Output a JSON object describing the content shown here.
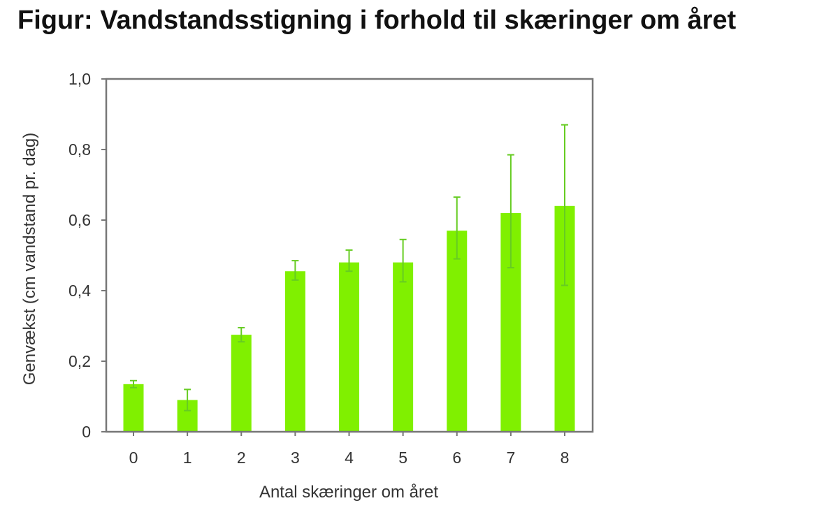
{
  "title": "Figur: Vandstandsstigning i forhold til skæringer om året",
  "chart_data": {
    "type": "bar",
    "title": "Figur: Vandstandsstigning i forhold til skæringer om året",
    "xlabel": "Antal skæringer om året",
    "ylabel": "Genvækst (cm vandstand pr. dag)",
    "categories": [
      "0",
      "1",
      "2",
      "3",
      "4",
      "5",
      "6",
      "7",
      "8"
    ],
    "values": [
      0.135,
      0.09,
      0.275,
      0.455,
      0.48,
      0.48,
      0.57,
      0.62,
      0.64
    ],
    "error_low": [
      0.125,
      0.06,
      0.255,
      0.43,
      0.455,
      0.425,
      0.49,
      0.465,
      0.415
    ],
    "error_high": [
      0.145,
      0.12,
      0.295,
      0.485,
      0.515,
      0.545,
      0.665,
      0.785,
      0.87
    ],
    "y_ticks": [
      "0",
      "0,2",
      "0,4",
      "0,6",
      "0,8",
      "1,0"
    ],
    "ylim": [
      0,
      1.0
    ],
    "grid": false,
    "legend": "none",
    "colors": {
      "bar": "#80f000",
      "error_bar": "#66cc22",
      "axis": "#555555"
    }
  }
}
